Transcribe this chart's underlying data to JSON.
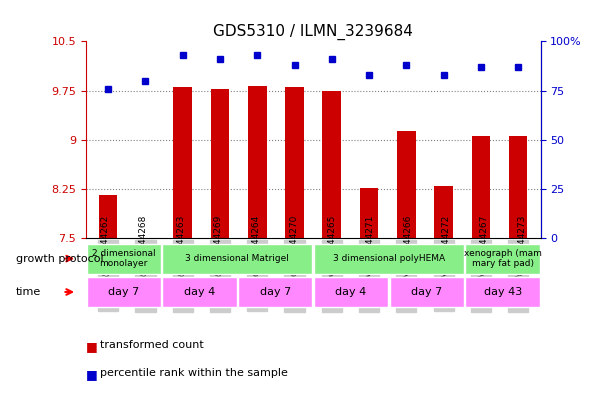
{
  "title": "GDS5310 / ILMN_3239684",
  "samples": [
    "GSM1044262",
    "GSM1044268",
    "GSM1044263",
    "GSM1044269",
    "GSM1044264",
    "GSM1044270",
    "GSM1044265",
    "GSM1044271",
    "GSM1044266",
    "GSM1044272",
    "GSM1044267",
    "GSM1044273"
  ],
  "bar_values": [
    8.15,
    7.5,
    9.8,
    9.78,
    9.82,
    9.8,
    9.74,
    8.27,
    9.13,
    8.3,
    9.06,
    9.06
  ],
  "dot_values": [
    76,
    80,
    93,
    91,
    93,
    88,
    91,
    83,
    88,
    83,
    87,
    87
  ],
  "bar_color": "#cc0000",
  "dot_color": "#0000cc",
  "ylim_left": [
    7.5,
    10.5
  ],
  "ylim_right": [
    0,
    100
  ],
  "yticks_left": [
    7.5,
    8.25,
    9.0,
    9.75,
    10.5
  ],
  "yticks_right": [
    0,
    25,
    50,
    75,
    100
  ],
  "ytick_labels_left": [
    "7.5",
    "8.25",
    "9",
    "9.75",
    "10.5"
  ],
  "ytick_labels_right": [
    "0",
    "25",
    "50",
    "75",
    "100%"
  ],
  "hlines": [
    8.25,
    9.0,
    9.75
  ],
  "growth_protocol_groups": [
    {
      "label": "2 dimensional\nmonolayer",
      "start": 0,
      "end": 2,
      "color": "#aaffaa"
    },
    {
      "label": "3 dimensional Matrigel",
      "start": 2,
      "end": 6,
      "color": "#aaffaa"
    },
    {
      "label": "3 dimensional polyHEMA",
      "start": 6,
      "end": 10,
      "color": "#aaffaa"
    },
    {
      "label": "xenograph (mam\nmary fat pad)",
      "start": 10,
      "end": 12,
      "color": "#aaffaa"
    }
  ],
  "time_groups": [
    {
      "label": "day 7",
      "start": 0,
      "end": 2,
      "color": "#ff88ff"
    },
    {
      "label": "day 4",
      "start": 2,
      "end": 4,
      "color": "#ff88ff"
    },
    {
      "label": "day 7",
      "start": 4,
      "end": 6,
      "color": "#ff88ff"
    },
    {
      "label": "day 4",
      "start": 6,
      "end": 8,
      "color": "#ff88ff"
    },
    {
      "label": "day 7",
      "start": 8,
      "end": 10,
      "color": "#ff88ff"
    },
    {
      "label": "day 43",
      "start": 10,
      "end": 12,
      "color": "#ff88ff"
    }
  ],
  "legend_items": [
    {
      "label": "transformed count",
      "color": "#cc0000"
    },
    {
      "label": "percentile rank within the sample",
      "color": "#0000cc"
    }
  ],
  "growth_protocol_label": "growth protocol",
  "time_label": "time"
}
